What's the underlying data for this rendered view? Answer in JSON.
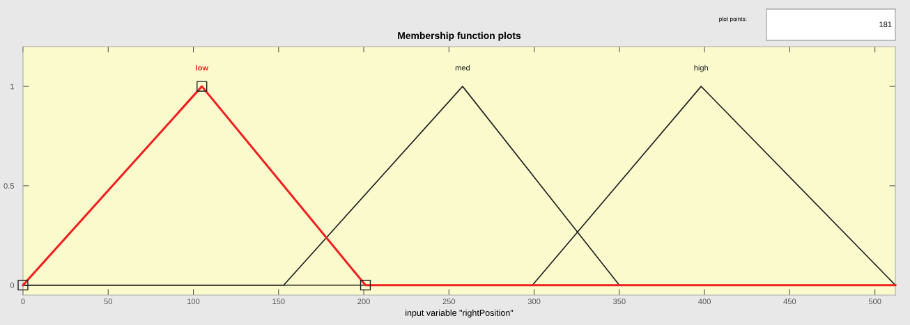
{
  "chart_data": {
    "type": "line",
    "title": "Membership function plots",
    "xlabel": "input variable \"rightPosition\"",
    "series": [
      {
        "name": "med",
        "color": "#202020",
        "x": [
          0,
          153,
          258,
          350,
          512
        ],
        "values": [
          0,
          0,
          1,
          0,
          0
        ]
      },
      {
        "name": "high",
        "color": "#202020",
        "x": [
          0,
          299,
          398,
          512
        ],
        "values": [
          0,
          0,
          1,
          0
        ]
      },
      {
        "name": "low",
        "color": "#f02020",
        "x": [
          0,
          105,
          201,
          512
        ],
        "values": [
          0,
          1,
          0,
          0
        ]
      },
      {
        "type": "scatter",
        "marker": "square",
        "color": "#202020",
        "x": [
          0,
          105,
          201
        ],
        "values": [
          0,
          1,
          0
        ]
      }
    ],
    "xlim": [
      0,
      512
    ],
    "ylim": [
      -0.05,
      1.2
    ],
    "xticks": [
      0,
      50,
      100,
      150,
      200,
      250,
      300,
      350,
      400,
      450,
      500
    ],
    "yticks": [
      0,
      0.5,
      1
    ],
    "annotations": [
      "plot points:",
      "181"
    ],
    "grid": false,
    "legend": false
  }
}
